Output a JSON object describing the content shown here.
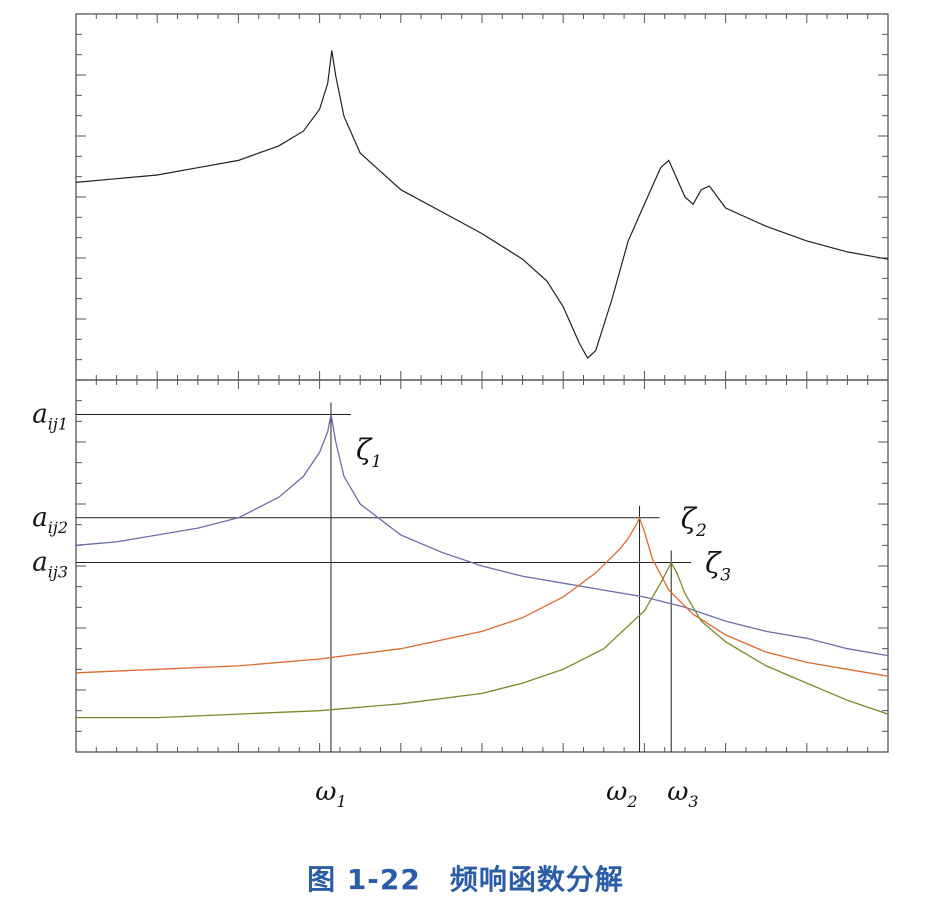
{
  "chart_data": [
    {
      "type": "line",
      "panel": "top",
      "title": "",
      "xlabel": "",
      "ylabel": "",
      "x": [
        0,
        0.05,
        0.1,
        0.15,
        0.2,
        0.25,
        0.28,
        0.3,
        0.31,
        0.315,
        0.32,
        0.33,
        0.35,
        0.4,
        0.45,
        0.5,
        0.55,
        0.58,
        0.6,
        0.62,
        0.63,
        0.64,
        0.66,
        0.68,
        0.7,
        0.72,
        0.73,
        0.74,
        0.75,
        0.76,
        0.77,
        0.78,
        0.8,
        0.85,
        0.9,
        0.95,
        1.0
      ],
      "values": [
        0.54,
        0.55,
        0.56,
        0.58,
        0.6,
        0.64,
        0.68,
        0.74,
        0.81,
        0.9,
        0.83,
        0.72,
        0.62,
        0.52,
        0.46,
        0.4,
        0.33,
        0.27,
        0.2,
        0.1,
        0.06,
        0.08,
        0.22,
        0.38,
        0.48,
        0.58,
        0.6,
        0.55,
        0.5,
        0.48,
        0.52,
        0.53,
        0.47,
        0.42,
        0.38,
        0.35,
        0.33
      ],
      "ylim": [
        0,
        1
      ],
      "grid": false
    },
    {
      "type": "line",
      "panel": "bottom",
      "title": "",
      "xlabel": "",
      "ylabel": "",
      "tick_labels_x": [
        {
          "base": "ω",
          "sub": "1",
          "x": 0.314
        },
        {
          "base": "ω",
          "sub": "2",
          "x": 0.694
        },
        {
          "base": "ω",
          "sub": "3",
          "x": 0.733
        }
      ],
      "tick_labels_y": [
        {
          "base": "a",
          "sub": "ij1",
          "y": 0.9
        },
        {
          "base": "a",
          "sub": "ij2",
          "y": 0.6
        },
        {
          "base": "a",
          "sub": "ij3",
          "y": 0.47
        }
      ],
      "annotations": [
        {
          "base": "ζ",
          "sub": "1",
          "x": 0.33,
          "y": 0.8
        },
        {
          "base": "ζ",
          "sub": "2",
          "x": 0.73,
          "y": 0.6
        },
        {
          "base": "ζ",
          "sub": "3",
          "x": 0.76,
          "y": 0.47
        }
      ],
      "series": [
        {
          "color": "#6b6fa8",
          "x": [
            0,
            0.05,
            0.1,
            0.15,
            0.2,
            0.25,
            0.28,
            0.3,
            0.31,
            0.314,
            0.32,
            0.33,
            0.35,
            0.4,
            0.45,
            0.5,
            0.55,
            0.6,
            0.65,
            0.7,
            0.75,
            0.8,
            0.85,
            0.9,
            0.95,
            1.0
          ],
          "values": [
            0.52,
            0.53,
            0.55,
            0.57,
            0.6,
            0.66,
            0.72,
            0.79,
            0.85,
            0.9,
            0.82,
            0.72,
            0.64,
            0.55,
            0.5,
            0.46,
            0.43,
            0.41,
            0.39,
            0.37,
            0.34,
            0.3,
            0.27,
            0.25,
            0.22,
            0.2
          ]
        },
        {
          "color": "#e06a2c",
          "x": [
            0,
            0.1,
            0.2,
            0.3,
            0.4,
            0.5,
            0.55,
            0.6,
            0.64,
            0.67,
            0.68,
            0.69,
            0.694,
            0.7,
            0.71,
            0.73,
            0.76,
            0.8,
            0.85,
            0.9,
            0.95,
            1.0
          ],
          "values": [
            0.15,
            0.16,
            0.17,
            0.19,
            0.22,
            0.27,
            0.31,
            0.37,
            0.44,
            0.51,
            0.54,
            0.58,
            0.6,
            0.56,
            0.48,
            0.39,
            0.32,
            0.26,
            0.21,
            0.18,
            0.16,
            0.14
          ]
        },
        {
          "color": "#7a8a2a",
          "x": [
            0,
            0.1,
            0.2,
            0.3,
            0.4,
            0.5,
            0.55,
            0.6,
            0.65,
            0.7,
            0.72,
            0.733,
            0.74,
            0.75,
            0.77,
            0.8,
            0.85,
            0.9,
            0.95,
            1.0
          ],
          "values": [
            0.02,
            0.02,
            0.03,
            0.04,
            0.06,
            0.09,
            0.12,
            0.16,
            0.22,
            0.33,
            0.41,
            0.47,
            0.44,
            0.38,
            0.3,
            0.24,
            0.17,
            0.12,
            0.07,
            0.03
          ]
        }
      ],
      "ylim": [
        -0.08,
        1
      ],
      "grid": false
    }
  ],
  "caption": "图 1-22　频响函数分解"
}
